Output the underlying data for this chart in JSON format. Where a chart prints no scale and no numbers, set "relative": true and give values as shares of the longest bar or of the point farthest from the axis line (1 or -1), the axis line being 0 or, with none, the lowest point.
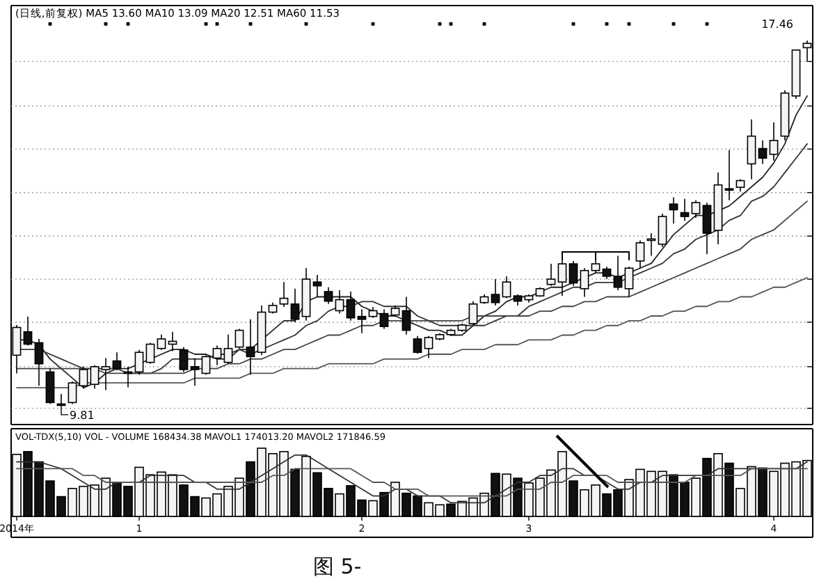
{
  "chart_data": [
    {
      "type": "candlestick",
      "title": "(日线,前复权) MA5 13.60 MA10 13.09 MA20 12.51 MA60 11.53",
      "categories": [
        null,
        null,
        null,
        null,
        null,
        null,
        null,
        null,
        null,
        null,
        null,
        null,
        null,
        null,
        null,
        null,
        null,
        null,
        null,
        null,
        null,
        null,
        null,
        null,
        null,
        null,
        null,
        null,
        null,
        null,
        null,
        null,
        null,
        null,
        null,
        null,
        null,
        null,
        null,
        null,
        null,
        null,
        null,
        null,
        null,
        null,
        null,
        null,
        null,
        null,
        null,
        null,
        null,
        null,
        null,
        null,
        null,
        null,
        null,
        null,
        null,
        null,
        null,
        null,
        null,
        null,
        null,
        null,
        null,
        null,
        null,
        null
      ],
      "ohlc": [
        [
          10.88,
          11.51,
          10.5,
          11.46
        ],
        [
          11.37,
          11.69,
          11.08,
          11.11
        ],
        [
          11.14,
          11.22,
          10.24,
          10.7
        ],
        [
          10.53,
          10.6,
          9.86,
          9.89
        ],
        [
          9.86,
          10.07,
          9.81,
          9.83
        ],
        [
          9.89,
          10.33,
          9.86,
          10.3
        ],
        [
          10.24,
          10.64,
          10.18,
          10.58
        ],
        [
          10.27,
          10.67,
          10.18,
          10.64
        ],
        [
          10.58,
          10.82,
          10.15,
          10.64
        ],
        [
          10.76,
          10.94,
          10.56,
          10.6
        ],
        [
          10.53,
          10.64,
          10.21,
          10.5
        ],
        [
          10.53,
          10.99,
          10.47,
          10.94
        ],
        [
          10.73,
          11.14,
          10.7,
          11.11
        ],
        [
          11.02,
          11.31,
          10.99,
          11.22
        ],
        [
          11.11,
          11.37,
          10.96,
          11.17
        ],
        [
          10.99,
          11.05,
          10.53,
          10.58
        ],
        [
          10.64,
          10.82,
          10.24,
          10.58
        ],
        [
          10.5,
          10.88,
          10.47,
          10.85
        ],
        [
          10.82,
          11.08,
          10.67,
          11.02
        ],
        [
          10.73,
          11.31,
          10.7,
          11.02
        ],
        [
          11.05,
          11.43,
          11.02,
          11.4
        ],
        [
          11.05,
          11.63,
          10.47,
          10.85
        ],
        [
          10.94,
          11.92,
          10.88,
          11.78
        ],
        [
          11.78,
          11.98,
          11.75,
          11.92
        ],
        [
          11.95,
          12.41,
          11.89,
          12.07
        ],
        [
          11.95,
          12.27,
          11.57,
          11.63
        ],
        [
          11.69,
          12.7,
          11.6,
          12.47
        ],
        [
          12.41,
          12.56,
          12.1,
          12.33
        ],
        [
          12.21,
          12.3,
          11.95,
          12.01
        ],
        [
          11.81,
          12.24,
          11.75,
          12.04
        ],
        [
          12.04,
          12.21,
          11.6,
          11.66
        ],
        [
          11.69,
          11.84,
          11.34,
          11.63
        ],
        [
          11.69,
          11.89,
          11.66,
          11.81
        ],
        [
          11.75,
          11.84,
          11.43,
          11.48
        ],
        [
          11.72,
          11.92,
          11.69,
          11.86
        ],
        [
          11.81,
          12.1,
          11.31,
          11.4
        ],
        [
          11.22,
          11.28,
          10.91,
          10.94
        ],
        [
          11.02,
          11.28,
          10.82,
          11.25
        ],
        [
          11.22,
          11.34,
          11.19,
          11.31
        ],
        [
          11.31,
          11.43,
          11.28,
          11.4
        ],
        [
          11.4,
          11.54,
          11.37,
          11.51
        ],
        [
          11.54,
          12.01,
          11.51,
          11.95
        ],
        [
          11.98,
          12.15,
          11.95,
          12.1
        ],
        [
          12.15,
          12.47,
          11.92,
          11.98
        ],
        [
          12.1,
          12.53,
          12.07,
          12.41
        ],
        [
          12.12,
          12.15,
          11.92,
          12.01
        ],
        [
          12.04,
          12.15,
          11.98,
          12.12
        ],
        [
          12.12,
          12.3,
          12.1,
          12.27
        ],
        [
          12.36,
          12.79,
          12.33,
          12.47
        ],
        [
          12.41,
          13.02,
          12.12,
          12.79
        ],
        [
          12.79,
          12.85,
          12.33,
          12.39
        ],
        [
          12.27,
          12.7,
          12.1,
          12.65
        ],
        [
          12.65,
          13.02,
          12.59,
          12.79
        ],
        [
          12.68,
          12.73,
          12.47,
          12.53
        ],
        [
          12.53,
          12.96,
          12.24,
          12.3
        ],
        [
          12.27,
          12.73,
          12.1,
          12.7
        ],
        [
          12.85,
          13.28,
          12.7,
          13.23
        ],
        [
          13.28,
          13.43,
          12.96,
          13.31
        ],
        [
          13.2,
          13.84,
          13.14,
          13.78
        ],
        [
          14.04,
          14.18,
          13.63,
          13.92
        ],
        [
          13.86,
          14.15,
          13.69,
          13.78
        ],
        [
          13.84,
          14.12,
          13.75,
          14.07
        ],
        [
          14.01,
          14.07,
          12.99,
          13.43
        ],
        [
          13.49,
          14.7,
          13.2,
          14.44
        ],
        [
          14.36,
          15.17,
          14.12,
          14.33
        ],
        [
          14.39,
          14.56,
          14.3,
          14.53
        ],
        [
          14.88,
          15.81,
          14.56,
          15.46
        ],
        [
          15.2,
          15.37,
          14.88,
          15.0
        ],
        [
          15.08,
          15.75,
          14.95,
          15.37
        ],
        [
          15.46,
          16.42,
          15.37,
          16.36
        ],
        [
          16.3,
          17.26,
          16.24,
          17.26
        ],
        [
          17.31,
          17.46,
          17.02,
          17.4
        ]
      ],
      "series": [
        {
          "type": "line",
          "color": "#222222",
          "values": [
            11.2,
            11.2,
            11.1,
            10.8,
            10.6,
            10.4,
            10.2,
            10.3,
            10.5,
            10.6,
            10.6,
            10.7,
            10.8,
            10.9,
            11.0,
            11.0,
            10.9,
            10.9,
            10.8,
            10.8,
            11.0,
            11.0,
            11.2,
            11.4,
            11.6,
            11.6,
            12.0,
            12.1,
            12.1,
            12.1,
            12.1,
            11.9,
            11.8,
            11.7,
            11.7,
            11.6,
            11.5,
            11.4,
            11.4,
            11.3,
            11.3,
            11.5,
            11.7,
            11.8,
            12.0,
            12.1,
            12.1,
            12.2,
            12.3,
            12.3,
            12.4,
            12.5,
            12.6,
            12.6,
            12.5,
            12.6,
            12.7,
            12.8,
            13.1,
            13.4,
            13.6,
            13.8,
            13.8,
            13.9,
            14.0,
            14.2,
            14.4,
            14.6,
            14.9,
            15.3,
            15.9,
            16.3
          ]
        },
        {
          "type": "line",
          "color": "#333333",
          "values": [
            11.0,
            11.0,
            11.0,
            10.9,
            10.8,
            10.7,
            10.6,
            10.6,
            10.6,
            10.6,
            10.5,
            10.5,
            10.5,
            10.6,
            10.8,
            10.8,
            10.8,
            10.8,
            10.9,
            10.9,
            11.0,
            10.9,
            11.0,
            11.1,
            11.2,
            11.3,
            11.5,
            11.6,
            11.8,
            11.9,
            11.9,
            12.0,
            12.0,
            11.9,
            11.9,
            11.9,
            11.7,
            11.6,
            11.5,
            11.5,
            11.5,
            11.5,
            11.5,
            11.6,
            11.7,
            11.7,
            11.9,
            12.0,
            12.1,
            12.2,
            12.3,
            12.3,
            12.4,
            12.4,
            12.4,
            12.5,
            12.6,
            12.7,
            12.8,
            13.0,
            13.1,
            13.3,
            13.4,
            13.5,
            13.7,
            13.8,
            14.1,
            14.2,
            14.4,
            14.7,
            15.0,
            15.3
          ]
        },
        {
          "type": "line",
          "color": "#444444",
          "values": [
            10.6,
            10.6,
            10.6,
            10.6,
            10.6,
            10.6,
            10.6,
            10.6,
            10.5,
            10.5,
            10.5,
            10.5,
            10.5,
            10.5,
            10.5,
            10.5,
            10.6,
            10.6,
            10.6,
            10.7,
            10.7,
            10.8,
            10.8,
            10.9,
            11.0,
            11.0,
            11.1,
            11.2,
            11.3,
            11.3,
            11.4,
            11.5,
            11.5,
            11.6,
            11.6,
            11.6,
            11.6,
            11.6,
            11.6,
            11.6,
            11.6,
            11.7,
            11.7,
            11.7,
            11.7,
            11.7,
            11.7,
            11.8,
            11.8,
            11.9,
            11.9,
            12.0,
            12.0,
            12.1,
            12.1,
            12.1,
            12.2,
            12.3,
            12.4,
            12.5,
            12.6,
            12.7,
            12.8,
            12.9,
            13.0,
            13.1,
            13.3,
            13.4,
            13.5,
            13.7,
            13.9,
            14.1
          ]
        },
        {
          "type": "line",
          "color": "#555555",
          "values": [
            10.2,
            10.2,
            10.2,
            10.2,
            10.2,
            10.2,
            10.3,
            10.3,
            10.3,
            10.3,
            10.3,
            10.3,
            10.3,
            10.3,
            10.3,
            10.3,
            10.4,
            10.4,
            10.4,
            10.4,
            10.4,
            10.5,
            10.5,
            10.5,
            10.6,
            10.6,
            10.6,
            10.6,
            10.7,
            10.7,
            10.7,
            10.7,
            10.7,
            10.8,
            10.8,
            10.8,
            10.8,
            10.9,
            10.9,
            10.9,
            11.0,
            11.0,
            11.0,
            11.1,
            11.1,
            11.1,
            11.2,
            11.2,
            11.2,
            11.3,
            11.3,
            11.4,
            11.4,
            11.5,
            11.5,
            11.6,
            11.6,
            11.7,
            11.7,
            11.8,
            11.8,
            11.9,
            11.9,
            12.0,
            12.0,
            12.1,
            12.1,
            12.2,
            12.3,
            12.3,
            12.4,
            12.5
          ]
        }
      ],
      "ylim": [
        9.43,
        18.19
      ],
      "yticks": [
        {
          "value": 9.77,
          "label": null
        },
        {
          "value": 10.64,
          "label": null
        },
        {
          "value": 11.57,
          "label": null
        },
        {
          "value": 12.47,
          "label": null
        },
        {
          "value": 13.37,
          "label": null
        },
        {
          "value": 14.28,
          "label": null
        },
        {
          "value": 15.19,
          "label": null
        },
        {
          "value": 16.09,
          "label": null
        },
        {
          "value": 17.02,
          "label": null
        }
      ],
      "grid": "y",
      "tick_labels": false,
      "annotations": [
        {
          "text": "9.81",
          "y": 9.81
        },
        "17.46"
      ]
    },
    {
      "type": "bar",
      "title": "VOL-TDX(5,10) VOL -  VOLUME 168434.38 MAVOL1 174013.20 MAVOL2 171846.59",
      "relative": true,
      "tick_labels": "x",
      "categories": [
        "2014年",
        null,
        null,
        null,
        null,
        null,
        null,
        null,
        null,
        null,
        null,
        "1",
        null,
        null,
        null,
        null,
        null,
        null,
        null,
        null,
        null,
        null,
        null,
        null,
        null,
        null,
        null,
        null,
        null,
        null,
        null,
        "2",
        null,
        null,
        null,
        null,
        null,
        null,
        null,
        null,
        null,
        null,
        null,
        null,
        null,
        null,
        "3",
        null,
        null,
        null,
        null,
        null,
        null,
        null,
        null,
        null,
        null,
        null,
        null,
        null,
        null,
        null,
        null,
        null,
        null,
        null,
        null,
        null,
        "4",
        null,
        null,
        null
      ],
      "series": [
        {
          "type": "bar",
          "values": [
            0.91,
            0.95,
            0.8,
            0.52,
            0.29,
            0.41,
            0.44,
            0.46,
            0.56,
            0.49,
            0.44,
            0.72,
            0.61,
            0.65,
            0.61,
            0.46,
            0.29,
            0.27,
            0.33,
            0.44,
            0.56,
            0.8,
            1.0,
            0.92,
            0.95,
            0.69,
            0.88,
            0.64,
            0.41,
            0.33,
            0.45,
            0.24,
            0.23,
            0.35,
            0.5,
            0.34,
            0.3,
            0.2,
            0.17,
            0.18,
            0.22,
            0.27,
            0.34,
            0.63,
            0.62,
            0.56,
            0.49,
            0.56,
            0.68,
            0.95,
            0.52,
            0.39,
            0.46,
            0.33,
            0.39,
            0.54,
            0.69,
            0.66,
            0.66,
            0.61,
            0.5,
            0.56,
            0.85,
            0.92,
            0.78,
            0.41,
            0.73,
            0.71,
            0.66,
            0.78,
            0.8,
            0.82
          ],
          "colors": [
            "#ffffff",
            "#111111",
            "#111111",
            "#111111",
            "#111111",
            "#ffffff",
            "#ffffff",
            "#ffffff",
            "#ffffff",
            "#111111",
            "#111111",
            "#ffffff",
            "#ffffff",
            "#ffffff",
            "#ffffff",
            "#111111",
            "#111111",
            "#ffffff",
            "#ffffff",
            "#ffffff",
            "#ffffff",
            "#111111",
            "#ffffff",
            "#ffffff",
            "#ffffff",
            "#111111",
            "#ffffff",
            "#111111",
            "#111111",
            "#ffffff",
            "#111111",
            "#111111",
            "#ffffff",
            "#111111",
            "#ffffff",
            "#111111",
            "#111111",
            "#ffffff",
            "#ffffff",
            "#111111",
            "#ffffff",
            "#ffffff",
            "#ffffff",
            "#111111",
            "#ffffff",
            "#111111",
            "#ffffff",
            "#ffffff",
            "#ffffff",
            "#ffffff",
            "#111111",
            "#ffffff",
            "#ffffff",
            "#111111",
            "#111111",
            "#ffffff",
            "#ffffff",
            "#ffffff",
            "#ffffff",
            "#111111",
            "#111111",
            "#ffffff",
            "#111111",
            "#ffffff",
            "#111111",
            "#ffffff",
            "#ffffff",
            "#111111",
            "#ffffff",
            "#ffffff",
            "#ffffff",
            "#ffffff"
          ]
        },
        {
          "type": "line",
          "color": "#333333",
          "values": [
            0.8,
            0.8,
            0.8,
            0.75,
            0.7,
            0.6,
            0.5,
            0.4,
            0.4,
            0.5,
            0.5,
            0.5,
            0.6,
            0.6,
            0.6,
            0.6,
            0.5,
            0.5,
            0.4,
            0.4,
            0.4,
            0.5,
            0.6,
            0.7,
            0.8,
            0.9,
            0.9,
            0.8,
            0.7,
            0.6,
            0.5,
            0.4,
            0.3,
            0.3,
            0.4,
            0.4,
            0.3,
            0.3,
            0.3,
            0.2,
            0.2,
            0.2,
            0.2,
            0.3,
            0.4,
            0.5,
            0.5,
            0.6,
            0.6,
            0.7,
            0.7,
            0.6,
            0.6,
            0.5,
            0.4,
            0.4,
            0.5,
            0.5,
            0.6,
            0.6,
            0.6,
            0.6,
            0.6,
            0.7,
            0.7,
            0.7,
            0.7,
            0.7,
            0.7,
            0.7,
            0.7,
            0.8
          ]
        },
        {
          "type": "line",
          "color": "#555555",
          "values": [
            0.7,
            0.7,
            0.7,
            0.7,
            0.7,
            0.7,
            0.6,
            0.6,
            0.5,
            0.5,
            0.5,
            0.5,
            0.5,
            0.5,
            0.5,
            0.5,
            0.5,
            0.5,
            0.5,
            0.5,
            0.5,
            0.5,
            0.5,
            0.6,
            0.6,
            0.7,
            0.7,
            0.7,
            0.7,
            0.7,
            0.7,
            0.6,
            0.5,
            0.5,
            0.4,
            0.4,
            0.4,
            0.3,
            0.3,
            0.3,
            0.3,
            0.3,
            0.3,
            0.3,
            0.3,
            0.4,
            0.4,
            0.4,
            0.5,
            0.5,
            0.6,
            0.6,
            0.6,
            0.6,
            0.5,
            0.5,
            0.5,
            0.5,
            0.5,
            0.5,
            0.5,
            0.6,
            0.6,
            0.6,
            0.6,
            0.6,
            0.7,
            0.7,
            0.7,
            0.7,
            0.7,
            0.7
          ]
        }
      ],
      "annotations": [
        "图 5-"
      ]
    }
  ]
}
